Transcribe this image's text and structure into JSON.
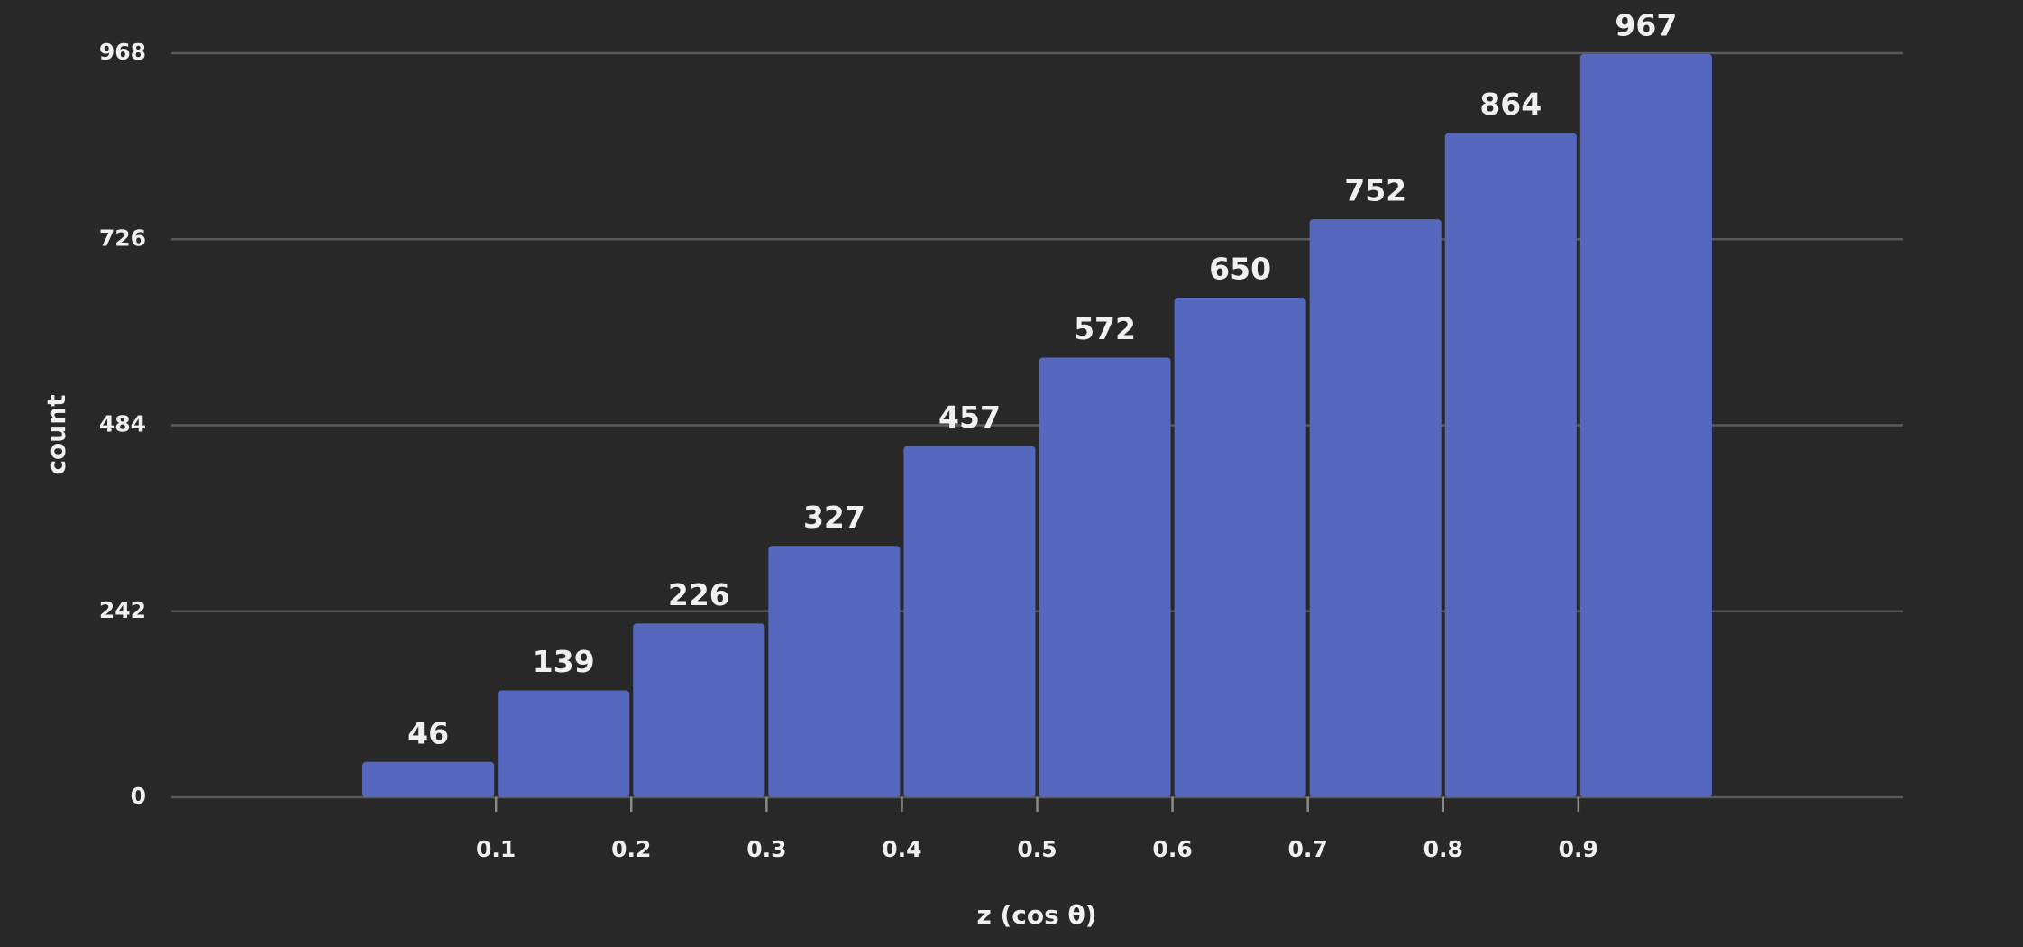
{
  "chart_data": {
    "type": "histogram",
    "x_label": "z (cos θ)",
    "y_label": "count",
    "bins": [
      0,
      0.1,
      0.2,
      0.3,
      0.4,
      0.5,
      0.6,
      0.7,
      0.8,
      0.9,
      1.0
    ],
    "values": [
      46,
      139,
      226,
      327,
      457,
      572,
      650,
      752,
      864,
      967
    ],
    "color": "#5567be",
    "xlim": [
      -0.14,
      1.14
    ],
    "xticks": [
      0.1,
      0.2,
      0.3,
      0.4,
      0.5,
      0.6,
      0.7,
      0.8,
      0.9
    ],
    "ylim": [
      0,
      968
    ],
    "yticks": [
      0,
      242,
      484,
      726,
      968
    ],
    "grid": true
  }
}
